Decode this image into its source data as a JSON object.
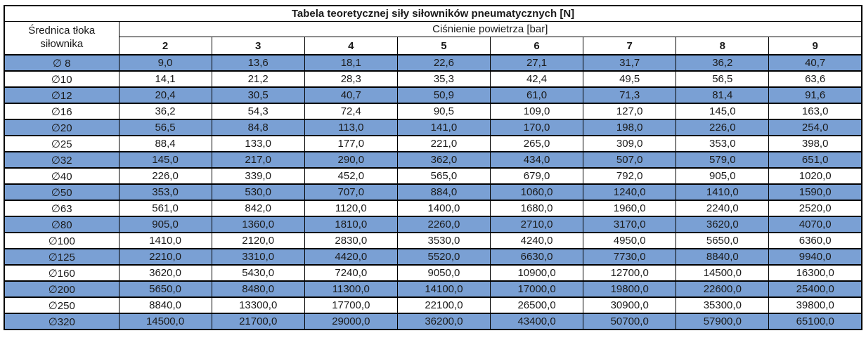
{
  "colors": {
    "row_highlight": "#7aa0d4",
    "border": "#000000",
    "background": "#ffffff"
  },
  "table": {
    "title": "Tabela teoretycznej siły siłowników pneumatycznych [N]",
    "row_header": "Średnica tłoka siłownika",
    "col_group_header": "Ciśnienie powietrza [bar]",
    "pressures": [
      "2",
      "3",
      "4",
      "5",
      "6",
      "7",
      "8",
      "9"
    ],
    "rows": [
      {
        "diameter": "∅ 8",
        "values": [
          "9,0",
          "13,6",
          "18,1",
          "22,6",
          "27,1",
          "31,7",
          "36,2",
          "40,7"
        ]
      },
      {
        "diameter": "∅10",
        "values": [
          "14,1",
          "21,2",
          "28,3",
          "35,3",
          "42,4",
          "49,5",
          "56,5",
          "63,6"
        ]
      },
      {
        "diameter": "∅12",
        "values": [
          "20,4",
          "30,5",
          "40,7",
          "50,9",
          "61,0",
          "71,3",
          "81,4",
          "91,6"
        ]
      },
      {
        "diameter": "∅16",
        "values": [
          "36,2",
          "54,3",
          "72,4",
          "90,5",
          "109,0",
          "127,0",
          "145,0",
          "163,0"
        ]
      },
      {
        "diameter": "∅20",
        "values": [
          "56,5",
          "84,8",
          "113,0",
          "141,0",
          "170,0",
          "198,0",
          "226,0",
          "254,0"
        ]
      },
      {
        "diameter": "∅25",
        "values": [
          "88,4",
          "133,0",
          "177,0",
          "221,0",
          "265,0",
          "309,0",
          "353,0",
          "398,0"
        ]
      },
      {
        "diameter": "∅32",
        "values": [
          "145,0",
          "217,0",
          "290,0",
          "362,0",
          "434,0",
          "507,0",
          "579,0",
          "651,0"
        ]
      },
      {
        "diameter": "∅40",
        "values": [
          "226,0",
          "339,0",
          "452,0",
          "565,0",
          "679,0",
          "792,0",
          "905,0",
          "1020,0"
        ]
      },
      {
        "diameter": "∅50",
        "values": [
          "353,0",
          "530,0",
          "707,0",
          "884,0",
          "1060,0",
          "1240,0",
          "1410,0",
          "1590,0"
        ]
      },
      {
        "diameter": "∅63",
        "values": [
          "561,0",
          "842,0",
          "1120,0",
          "1400,0",
          "1680,0",
          "1960,0",
          "2240,0",
          "2520,0"
        ]
      },
      {
        "diameter": "∅80",
        "values": [
          "905,0",
          "1360,0",
          "1810,0",
          "2260,0",
          "2710,0",
          "3170,0",
          "3620,0",
          "4070,0"
        ]
      },
      {
        "diameter": "∅100",
        "values": [
          "1410,0",
          "2120,0",
          "2830,0",
          "3530,0",
          "4240,0",
          "4950,0",
          "5650,0",
          "6360,0"
        ]
      },
      {
        "diameter": "∅125",
        "values": [
          "2210,0",
          "3310,0",
          "4420,0",
          "5520,0",
          "6630,0",
          "7730,0",
          "8840,0",
          "9940,0"
        ]
      },
      {
        "diameter": "∅160",
        "values": [
          "3620,0",
          "5430,0",
          "7240,0",
          "9050,0",
          "10900,0",
          "12700,0",
          "14500,0",
          "16300,0"
        ]
      },
      {
        "diameter": "∅200",
        "values": [
          "5650,0",
          "8480,0",
          "11300,0",
          "14100,0",
          "17000,0",
          "19800,0",
          "22600,0",
          "25400,0"
        ]
      },
      {
        "diameter": "∅250",
        "values": [
          "8840,0",
          "13300,0",
          "17700,0",
          "22100,0",
          "26500,0",
          "30900,0",
          "35300,0",
          "39800,0"
        ]
      },
      {
        "diameter": "∅320",
        "values": [
          "14500,0",
          "21700,0",
          "29000,0",
          "36200,0",
          "43400,0",
          "50700,0",
          "57900,0",
          "65100,0"
        ]
      }
    ]
  }
}
